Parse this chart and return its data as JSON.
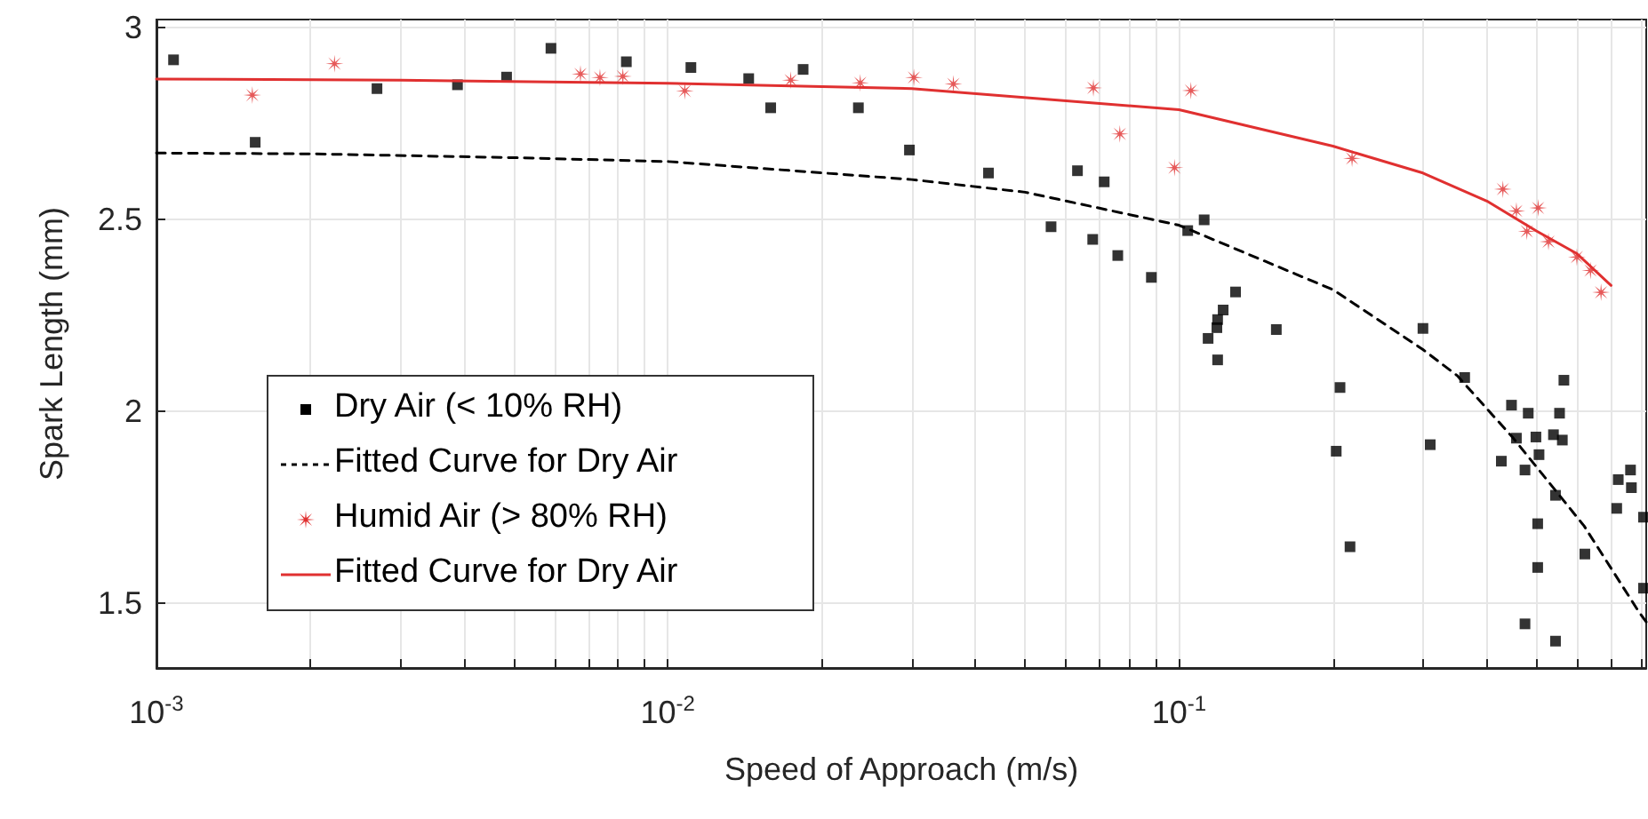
{
  "chart_data": {
    "type": "scatter",
    "xlabel": "Speed of Approach (m/s)",
    "ylabel": "Spark Length (mm)",
    "log": "x",
    "grid": true,
    "legend": "bottom left",
    "xlim": [
      0.001,
      0.82
    ],
    "ylim": [
      1.33,
      3.02
    ],
    "xticks": [
      {
        "value": 0.001,
        "label": "10$^{-3}$"
      },
      {
        "value": 0.002,
        "label": null
      },
      {
        "value": 0.003,
        "label": null
      },
      {
        "value": 0.004,
        "label": null
      },
      {
        "value": 0.005,
        "label": null
      },
      {
        "value": 0.006,
        "label": null
      },
      {
        "value": 0.007,
        "label": null
      },
      {
        "value": 0.008,
        "label": null
      },
      {
        "value": 0.009,
        "label": null
      },
      {
        "value": 0.01,
        "label": "10$^{-2}$"
      },
      {
        "value": 0.02,
        "label": null
      },
      {
        "value": 0.03,
        "label": null
      },
      {
        "value": 0.04,
        "label": null
      },
      {
        "value": 0.05,
        "label": null
      },
      {
        "value": 0.06,
        "label": null
      },
      {
        "value": 0.07,
        "label": null
      },
      {
        "value": 0.08,
        "label": null
      },
      {
        "value": 0.09,
        "label": null
      },
      {
        "value": 0.1,
        "label": "10$^{-1}$"
      },
      {
        "value": 0.2,
        "label": null
      },
      {
        "value": 0.3,
        "label": null
      },
      {
        "value": 0.4,
        "label": null
      },
      {
        "value": 0.5,
        "label": null
      },
      {
        "value": 0.6,
        "label": null
      },
      {
        "value": 0.7,
        "label": null
      },
      {
        "value": 0.8,
        "label": null
      }
    ],
    "yticks": [
      1.5,
      2,
      2.5,
      3
    ],
    "series": [
      {
        "name": "Dry Air (< 10% RH)",
        "type": "scatter",
        "marker": "square",
        "color": "#000000",
        "x": [
          0.00108,
          0.00156,
          0.0027,
          0.00388,
          0.00484,
          0.00591,
          0.0083,
          0.0111,
          0.0144,
          0.0159,
          0.0184,
          0.0236,
          0.0297,
          0.0424,
          0.0562,
          0.0633,
          0.0678,
          0.0714,
          0.0759,
          0.0883,
          0.104,
          0.112,
          0.129,
          0.122,
          0.119,
          0.1186,
          0.114,
          0.119,
          0.155,
          0.2065,
          0.203,
          0.216,
          0.3,
          0.31,
          0.362,
          0.447,
          0.482,
          0.457,
          0.499,
          0.54,
          0.566,
          0.555,
          0.562,
          0.506,
          0.427,
          0.475,
          0.545,
          0.503,
          0.503,
          0.622,
          0.475,
          0.545,
          0.723,
          0.764,
          0.767,
          0.718,
          0.81,
          0.81
        ],
        "values": [
          2.915,
          2.7,
          2.84,
          2.85,
          2.87,
          2.945,
          2.91,
          2.895,
          2.866,
          2.79,
          2.89,
          2.79,
          2.68,
          2.62,
          2.48,
          2.626,
          2.447,
          2.597,
          2.405,
          2.348,
          2.47,
          2.498,
          2.31,
          2.263,
          2.238,
          2.217,
          2.189,
          2.133,
          2.212,
          2.061,
          1.895,
          1.646,
          2.215,
          1.912,
          2.087,
          2.015,
          1.994,
          1.929,
          1.932,
          1.938,
          2.08,
          1.994,
          1.924,
          1.886,
          1.869,
          1.846,
          1.78,
          1.706,
          1.592,
          1.627,
          1.445,
          1.4,
          1.821,
          1.846,
          1.8,
          1.746,
          1.723,
          1.538
        ]
      },
      {
        "name": "Fitted Curve for Dry Air",
        "type": "line",
        "marker": "none",
        "line_style": "dashed",
        "color": "#000000",
        "x": [
          0.001,
          0.002,
          0.005,
          0.01,
          0.016,
          0.03,
          0.05,
          0.1,
          0.2,
          0.3,
          0.35,
          0.45,
          0.62,
          0.79,
          0.82
        ],
        "values": [
          2.672,
          2.67,
          2.66,
          2.65,
          2.63,
          2.603,
          2.57,
          2.484,
          2.316,
          2.16,
          2.092,
          1.93,
          1.7,
          1.48,
          1.45
        ]
      },
      {
        "name": "Humid Air (> 80% RH)",
        "type": "scatter",
        "marker": "star",
        "color": "#e03030",
        "x": [
          0.00154,
          0.00223,
          0.00675,
          0.00737,
          0.00817,
          0.0108,
          0.0174,
          0.0238,
          0.0303,
          0.0362,
          0.068,
          0.0766,
          0.098,
          0.1055,
          0.218,
          0.43,
          0.457,
          0.504,
          0.479,
          0.528,
          0.6,
          0.638,
          0.669
        ],
        "values": [
          2.823,
          2.905,
          2.878,
          2.869,
          2.872,
          2.834,
          2.862,
          2.855,
          2.869,
          2.852,
          2.842,
          2.722,
          2.634,
          2.835,
          2.658,
          2.578,
          2.521,
          2.529,
          2.468,
          2.441,
          2.401,
          2.366,
          2.309
        ]
      },
      {
        "name": "Fitted Curve for Dry Air",
        "type": "line",
        "marker": "none",
        "line_style": "solid",
        "color": "#e03030",
        "x": [
          0.001,
          0.003,
          0.01,
          0.03,
          0.1,
          0.2,
          0.3,
          0.4,
          0.5,
          0.6,
          0.7
        ],
        "values": [
          2.865,
          2.862,
          2.854,
          2.84,
          2.785,
          2.69,
          2.62,
          2.547,
          2.469,
          2.41,
          2.327
        ]
      }
    ]
  }
}
